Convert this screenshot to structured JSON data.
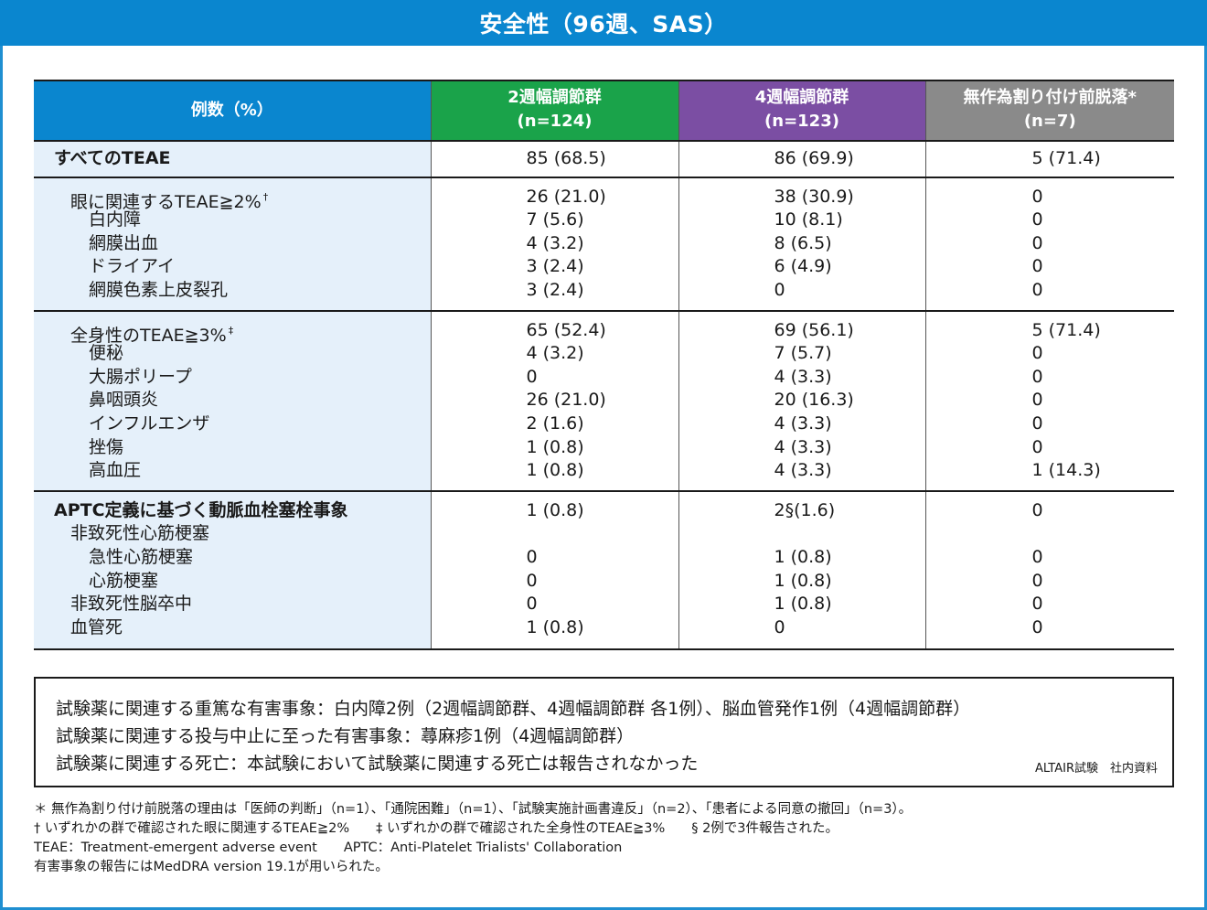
{
  "title": "安全性（96週、SAS）",
  "table": {
    "headers": {
      "label": "例数（%）",
      "groups": [
        {
          "name": "2週幅調節群",
          "n": "(n=124)"
        },
        {
          "name": "4週幅調節群",
          "n": "(n=123)"
        },
        {
          "name": "無作為割り付け前脱落*",
          "n": "(n=7)"
        }
      ]
    },
    "all_teae": {
      "label": "すべてのTEAE",
      "values": [
        "85 (68.5)",
        "86 (69.9)",
        "5 (71.4)"
      ]
    },
    "eye": {
      "label": "眼に関連するTEAE≧2%",
      "mark": "†",
      "values": [
        "26 (21.0)",
        "38 (30.9)",
        "0"
      ],
      "items": [
        {
          "label": "白内障",
          "values": [
            "7 (5.6)",
            "10 (8.1)",
            "0"
          ]
        },
        {
          "label": "網膜出血",
          "values": [
            "4 (3.2)",
            "8 (6.5)",
            "0"
          ]
        },
        {
          "label": "ドライアイ",
          "values": [
            "3 (2.4)",
            "6 (4.9)",
            "0"
          ]
        },
        {
          "label": "網膜色素上皮裂孔",
          "values": [
            "3 (2.4)",
            "0",
            "0"
          ]
        }
      ]
    },
    "systemic": {
      "label": "全身性のTEAE≧3%",
      "mark": "‡",
      "values": [
        "65 (52.4)",
        "69 (56.1)",
        "5 (71.4)"
      ],
      "items": [
        {
          "label": "便秘",
          "values": [
            "4 (3.2)",
            "7 (5.7)",
            "0"
          ]
        },
        {
          "label": "大腸ポリープ",
          "values": [
            "0",
            "4 (3.3)",
            "0"
          ]
        },
        {
          "label": "鼻咽頭炎",
          "values": [
            "26 (21.0)",
            "20 (16.3)",
            "0"
          ]
        },
        {
          "label": "インフルエンザ",
          "values": [
            "2 (1.6)",
            "4 (3.3)",
            "0"
          ]
        },
        {
          "label": "挫傷",
          "values": [
            "1 (0.8)",
            "4 (3.3)",
            "0"
          ]
        },
        {
          "label": "高血圧",
          "values": [
            "1 (0.8)",
            "4 (3.3)",
            "1 (14.3)"
          ]
        }
      ]
    },
    "aptc": {
      "label": "APTC定義に基づく動脈血栓塞栓事象",
      "values": [
        "1 (0.8)",
        "2§(1.6)",
        "0"
      ],
      "sub1": {
        "label": "非致死性心筋梗塞"
      },
      "sub1_items": [
        {
          "label": "急性心筋梗塞",
          "values": [
            "0",
            "1 (0.8)",
            "0"
          ]
        },
        {
          "label": "心筋梗塞",
          "values": [
            "0",
            "1 (0.8)",
            "0"
          ]
        }
      ],
      "items": [
        {
          "label": "非致死性脳卒中",
          "values": [
            "0",
            "1 (0.8)",
            "0"
          ]
        },
        {
          "label": "血管死",
          "values": [
            "1 (0.8)",
            "0",
            "0"
          ]
        }
      ]
    }
  },
  "notes": {
    "lines": [
      "試験薬に関連する重篤な有害事象：白内障2例（2週幅調節群、4週幅調節群 各1例）、脳血管発作1例（4週幅調節群）",
      "試験薬に関連する投与中止に至った有害事象：蕁麻疹1例（4週幅調節群）",
      "試験薬に関連する死亡：本試験において試験薬に関連する死亡は報告されなかった"
    ],
    "source": "ALTAIR試験　社内資料"
  },
  "footnotes": [
    "＊ 無作為割り付け前脱落の理由は「医師の判断」（n=1）、「通院困難」（n=1）、「試験実施計画書違反」（n=2）、「患者による同意の撤回」（n=3）。",
    "† いずれかの群で確認された眼に関連するTEAE≧2%　　‡ いずれかの群で確認された全身性のTEAE≧3%　　§ 2例で3件報告された。",
    "TEAE：Treatment-emergent adverse event　　APTC：Anti-Platelet Trialists' Collaboration",
    "有害事象の報告にはMedDRA version 19.1が用いられた。"
  ]
}
